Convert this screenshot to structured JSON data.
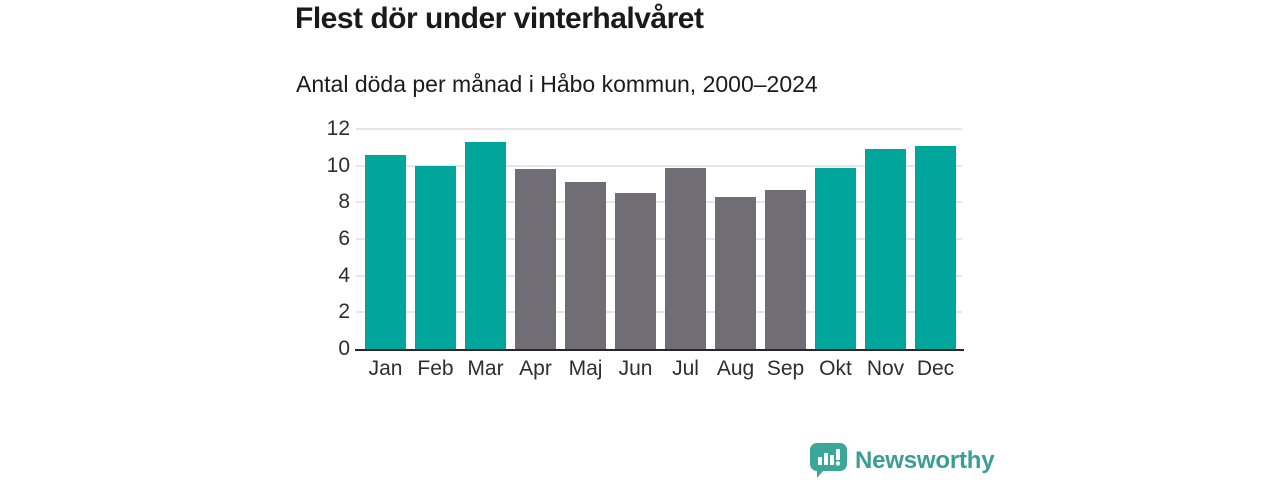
{
  "chart_data": {
    "type": "bar",
    "title": "Flest dör under vinterhalvåret",
    "subtitle": "Antal döda per månad i Håbo kommun, 2000–2024",
    "categories": [
      "Jan",
      "Feb",
      "Mar",
      "Apr",
      "Maj",
      "Jun",
      "Jul",
      "Aug",
      "Sep",
      "Okt",
      "Nov",
      "Dec"
    ],
    "values": [
      10.6,
      10.0,
      11.3,
      9.8,
      9.1,
      8.5,
      9.9,
      8.3,
      8.7,
      9.9,
      10.9,
      11.1
    ],
    "highlight": [
      true,
      true,
      true,
      false,
      false,
      false,
      false,
      false,
      false,
      true,
      true,
      true
    ],
    "xlabel": "",
    "ylabel": "",
    "ylim": [
      0,
      12
    ],
    "yticks": [
      0,
      2,
      4,
      6,
      8,
      10,
      12
    ],
    "grid": "horizontal",
    "legend": "none"
  },
  "colors": {
    "winter_bar": "#00a59b",
    "summer_bar": "#716d74",
    "gridline": "#e6e6ea",
    "axis_line": "#26262b",
    "text": "#1a1a1a",
    "tick_text": "#2e2e2e",
    "brand": "#3a9e95"
  },
  "footer": {
    "brand": "Newsworthy"
  }
}
